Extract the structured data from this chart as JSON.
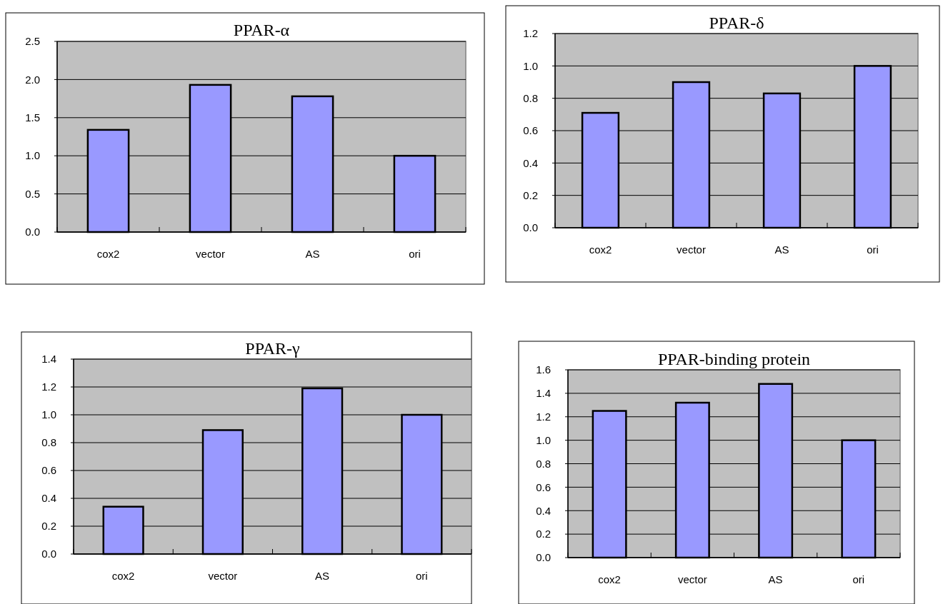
{
  "chart_data": [
    {
      "type": "bar",
      "title": "PPAR-α",
      "categories": [
        "cox2",
        "vector",
        "AS",
        "ori"
      ],
      "values": [
        1.34,
        1.93,
        1.78,
        1.0
      ],
      "color": "#9999ff",
      "ylim": [
        0,
        2.5
      ],
      "yticks": [
        {
          "value": 0,
          "label": "0.0"
        },
        {
          "value": 0.5,
          "label": "0.5"
        },
        {
          "value": 1,
          "label": "1.0"
        },
        {
          "value": 1.5,
          "label": "1.5"
        },
        {
          "value": 2,
          "label": "2.0"
        },
        {
          "value": 2.5,
          "label": "2.5"
        }
      ],
      "grid": "y"
    },
    {
      "type": "bar",
      "title": "PPAR-δ",
      "categories": [
        "cox2",
        "vector",
        "AS",
        "ori"
      ],
      "values": [
        0.71,
        0.9,
        0.83,
        1.0
      ],
      "color": "#9999ff",
      "ylim": [
        0,
        1.2
      ],
      "yticks": [
        {
          "value": 0,
          "label": "0.0"
        },
        {
          "value": 0.2,
          "label": "0.2"
        },
        {
          "value": 0.4,
          "label": "0.4"
        },
        {
          "value": 0.6,
          "label": "0.6"
        },
        {
          "value": 0.8,
          "label": "0.8"
        },
        {
          "value": 1,
          "label": "1.0"
        },
        {
          "value": 1.2,
          "label": "1.2"
        }
      ],
      "grid": "y"
    },
    {
      "type": "bar",
      "title": "PPAR-γ",
      "categories": [
        "cox2",
        "vector",
        "AS",
        "ori"
      ],
      "values": [
        0.34,
        0.89,
        1.19,
        1.0
      ],
      "color": "#9999ff",
      "ylim": [
        0,
        1.4
      ],
      "yticks": [
        {
          "value": 0,
          "label": "0.0"
        },
        {
          "value": 0.2,
          "label": "0.2"
        },
        {
          "value": 0.4,
          "label": "0.4"
        },
        {
          "value": 0.6,
          "label": "0.6"
        },
        {
          "value": 0.8,
          "label": "0.8"
        },
        {
          "value": 1,
          "label": "1.0"
        },
        {
          "value": 1.2,
          "label": "1.2"
        },
        {
          "value": 1.4,
          "label": "1.4"
        }
      ],
      "grid": "y"
    },
    {
      "type": "bar",
      "title": "PPAR-binding protein",
      "categories": [
        "cox2",
        "vector",
        "AS",
        "ori"
      ],
      "values": [
        1.25,
        1.32,
        1.48,
        1.0
      ],
      "color": "#9999ff",
      "ylim": [
        0,
        1.6
      ],
      "yticks": [
        {
          "value": 0,
          "label": "0.0"
        },
        {
          "value": 0.2,
          "label": "0.2"
        },
        {
          "value": 0.4,
          "label": "0.4"
        },
        {
          "value": 0.6,
          "label": "0.6"
        },
        {
          "value": 0.8,
          "label": "0.8"
        },
        {
          "value": 1,
          "label": "1.0"
        },
        {
          "value": 1.2,
          "label": "1.2"
        },
        {
          "value": 1.4,
          "label": "1.4"
        },
        {
          "value": 1.6,
          "label": "1.6"
        }
      ],
      "grid": "y"
    }
  ]
}
